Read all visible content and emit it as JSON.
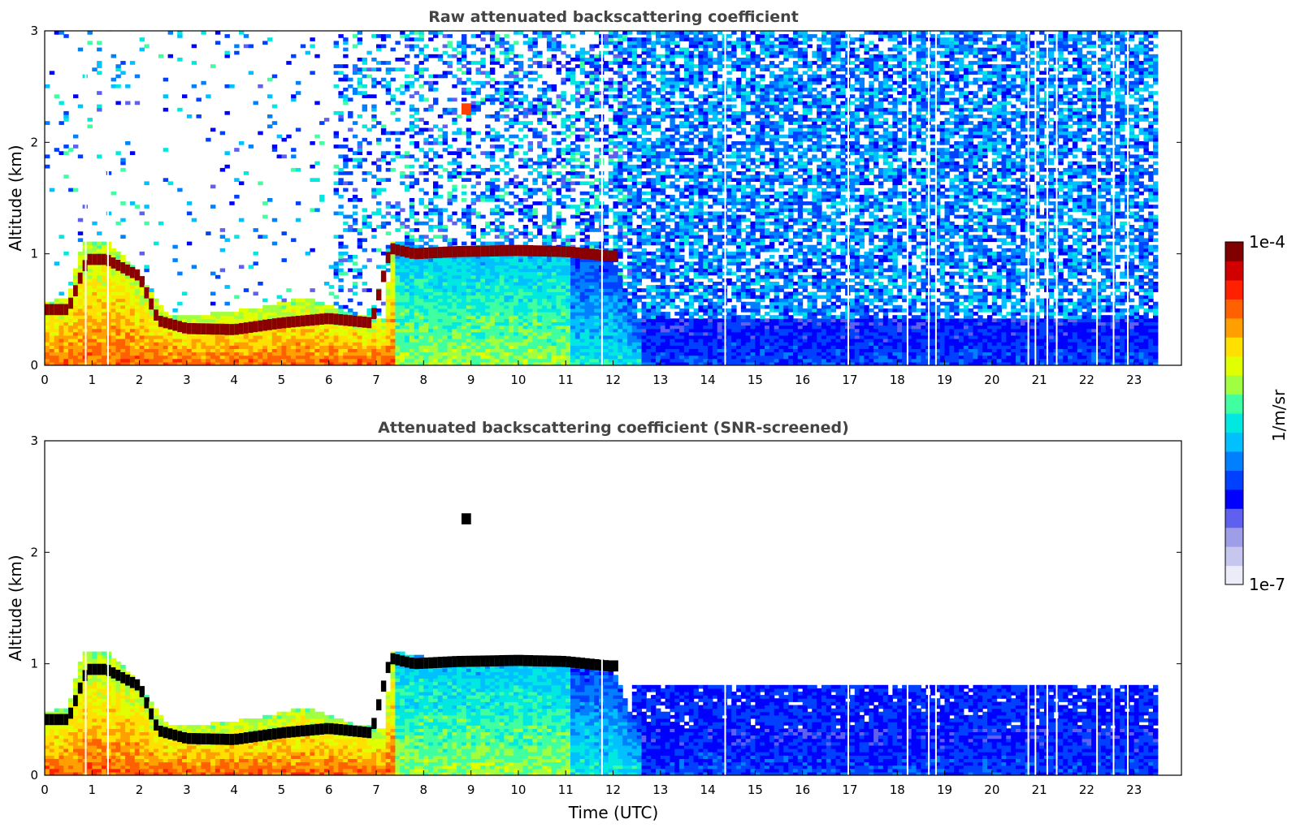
{
  "chart_data": [
    {
      "type": "heatmap",
      "title": "Raw attenuated backscattering coefficient",
      "xlabel": "",
      "ylabel": "Altitude (km)",
      "xlim": [
        0,
        24
      ],
      "ylim": [
        0,
        3
      ],
      "x_ticks": [
        "0",
        "1",
        "2",
        "3",
        "4",
        "5",
        "6",
        "7",
        "8",
        "9",
        "10",
        "11",
        "12",
        "13",
        "14",
        "15",
        "16",
        "17",
        "18",
        "19",
        "20",
        "21",
        "22",
        "23"
      ],
      "y_ticks": [
        "0",
        "1",
        "2",
        "3"
      ],
      "data_end_time": 23.5,
      "features": {
        "aerosol_layer_top_km": [
          [
            0,
            0.55
          ],
          [
            0.5,
            0.6
          ],
          [
            0.8,
            1.1
          ],
          [
            1.3,
            1.1
          ],
          [
            1.6,
            1.0
          ],
          [
            2.0,
            0.8
          ],
          [
            2.3,
            0.6
          ],
          [
            2.6,
            0.45
          ],
          [
            3.5,
            0.45
          ],
          [
            4.5,
            0.5
          ],
          [
            5.0,
            0.55
          ],
          [
            5.5,
            0.6
          ],
          [
            6.5,
            0.45
          ],
          [
            7.2,
            0.4
          ],
          [
            7.3,
            1.1
          ],
          [
            8.0,
            1.05
          ],
          [
            9.0,
            1.05
          ],
          [
            10.0,
            1.05
          ],
          [
            11.0,
            1.0
          ],
          [
            12.0,
            0.95
          ],
          [
            12.5,
            0.4
          ],
          [
            23.5,
            0.4
          ]
        ],
        "cloud_layer_km": [
          [
            0.5,
            0.5
          ],
          [
            0.9,
            0.95
          ],
          [
            1.3,
            0.95
          ],
          [
            2.0,
            0.8
          ],
          [
            2.4,
            0.4
          ],
          [
            3.0,
            0.33
          ],
          [
            4.0,
            0.32
          ],
          [
            5.0,
            0.38
          ],
          [
            6.0,
            0.42
          ],
          [
            6.9,
            0.38
          ],
          [
            7.3,
            1.05
          ],
          [
            7.8,
            1.0
          ],
          [
            8.7,
            1.02
          ],
          [
            10.0,
            1.03
          ],
          [
            11.0,
            1.02
          ],
          [
            11.9,
            0.98
          ]
        ],
        "missing_profiles_utc": [
          0.85,
          1.32,
          11.75,
          14.35,
          16.95,
          18.2,
          18.65,
          18.8,
          20.75,
          20.9,
          21.15,
          21.35,
          22.2,
          22.55,
          22.85
        ]
      }
    },
    {
      "type": "heatmap",
      "title": "Attenuated backscattering coefficient (SNR-screened)",
      "xlabel": "Time (UTC)",
      "ylabel": "Altitude (km)",
      "xlim": [
        0,
        24
      ],
      "ylim": [
        0,
        3
      ],
      "x_ticks": [
        "0",
        "1",
        "2",
        "3",
        "4",
        "5",
        "6",
        "7",
        "8",
        "9",
        "10",
        "11",
        "12",
        "13",
        "14",
        "15",
        "16",
        "17",
        "18",
        "19",
        "20",
        "21",
        "22",
        "23"
      ],
      "y_ticks": [
        "0",
        "1",
        "2",
        "3"
      ],
      "data_end_time": 23.5,
      "features": {
        "screened_signal_top_km": [
          [
            12.5,
            0.9
          ],
          [
            14,
            0.8
          ],
          [
            18,
            0.75
          ],
          [
            23.5,
            0.78
          ]
        ],
        "isolated_cloud_km": [
          8.9,
          2.3
        ]
      }
    }
  ],
  "colorbar": {
    "label": "1/m/sr",
    "max_label": "1e-4",
    "min_label": "1e-7",
    "colors": [
      "#ececf8",
      "#c6c6ee",
      "#9e9ee8",
      "#6060f0",
      "#0000ff",
      "#0040ff",
      "#0080ff",
      "#00c0ff",
      "#00e8e0",
      "#40ffa0",
      "#a0ff40",
      "#e0ff00",
      "#ffe000",
      "#ffa000",
      "#ff6000",
      "#ff2000",
      "#d00000",
      "#800000"
    ]
  }
}
